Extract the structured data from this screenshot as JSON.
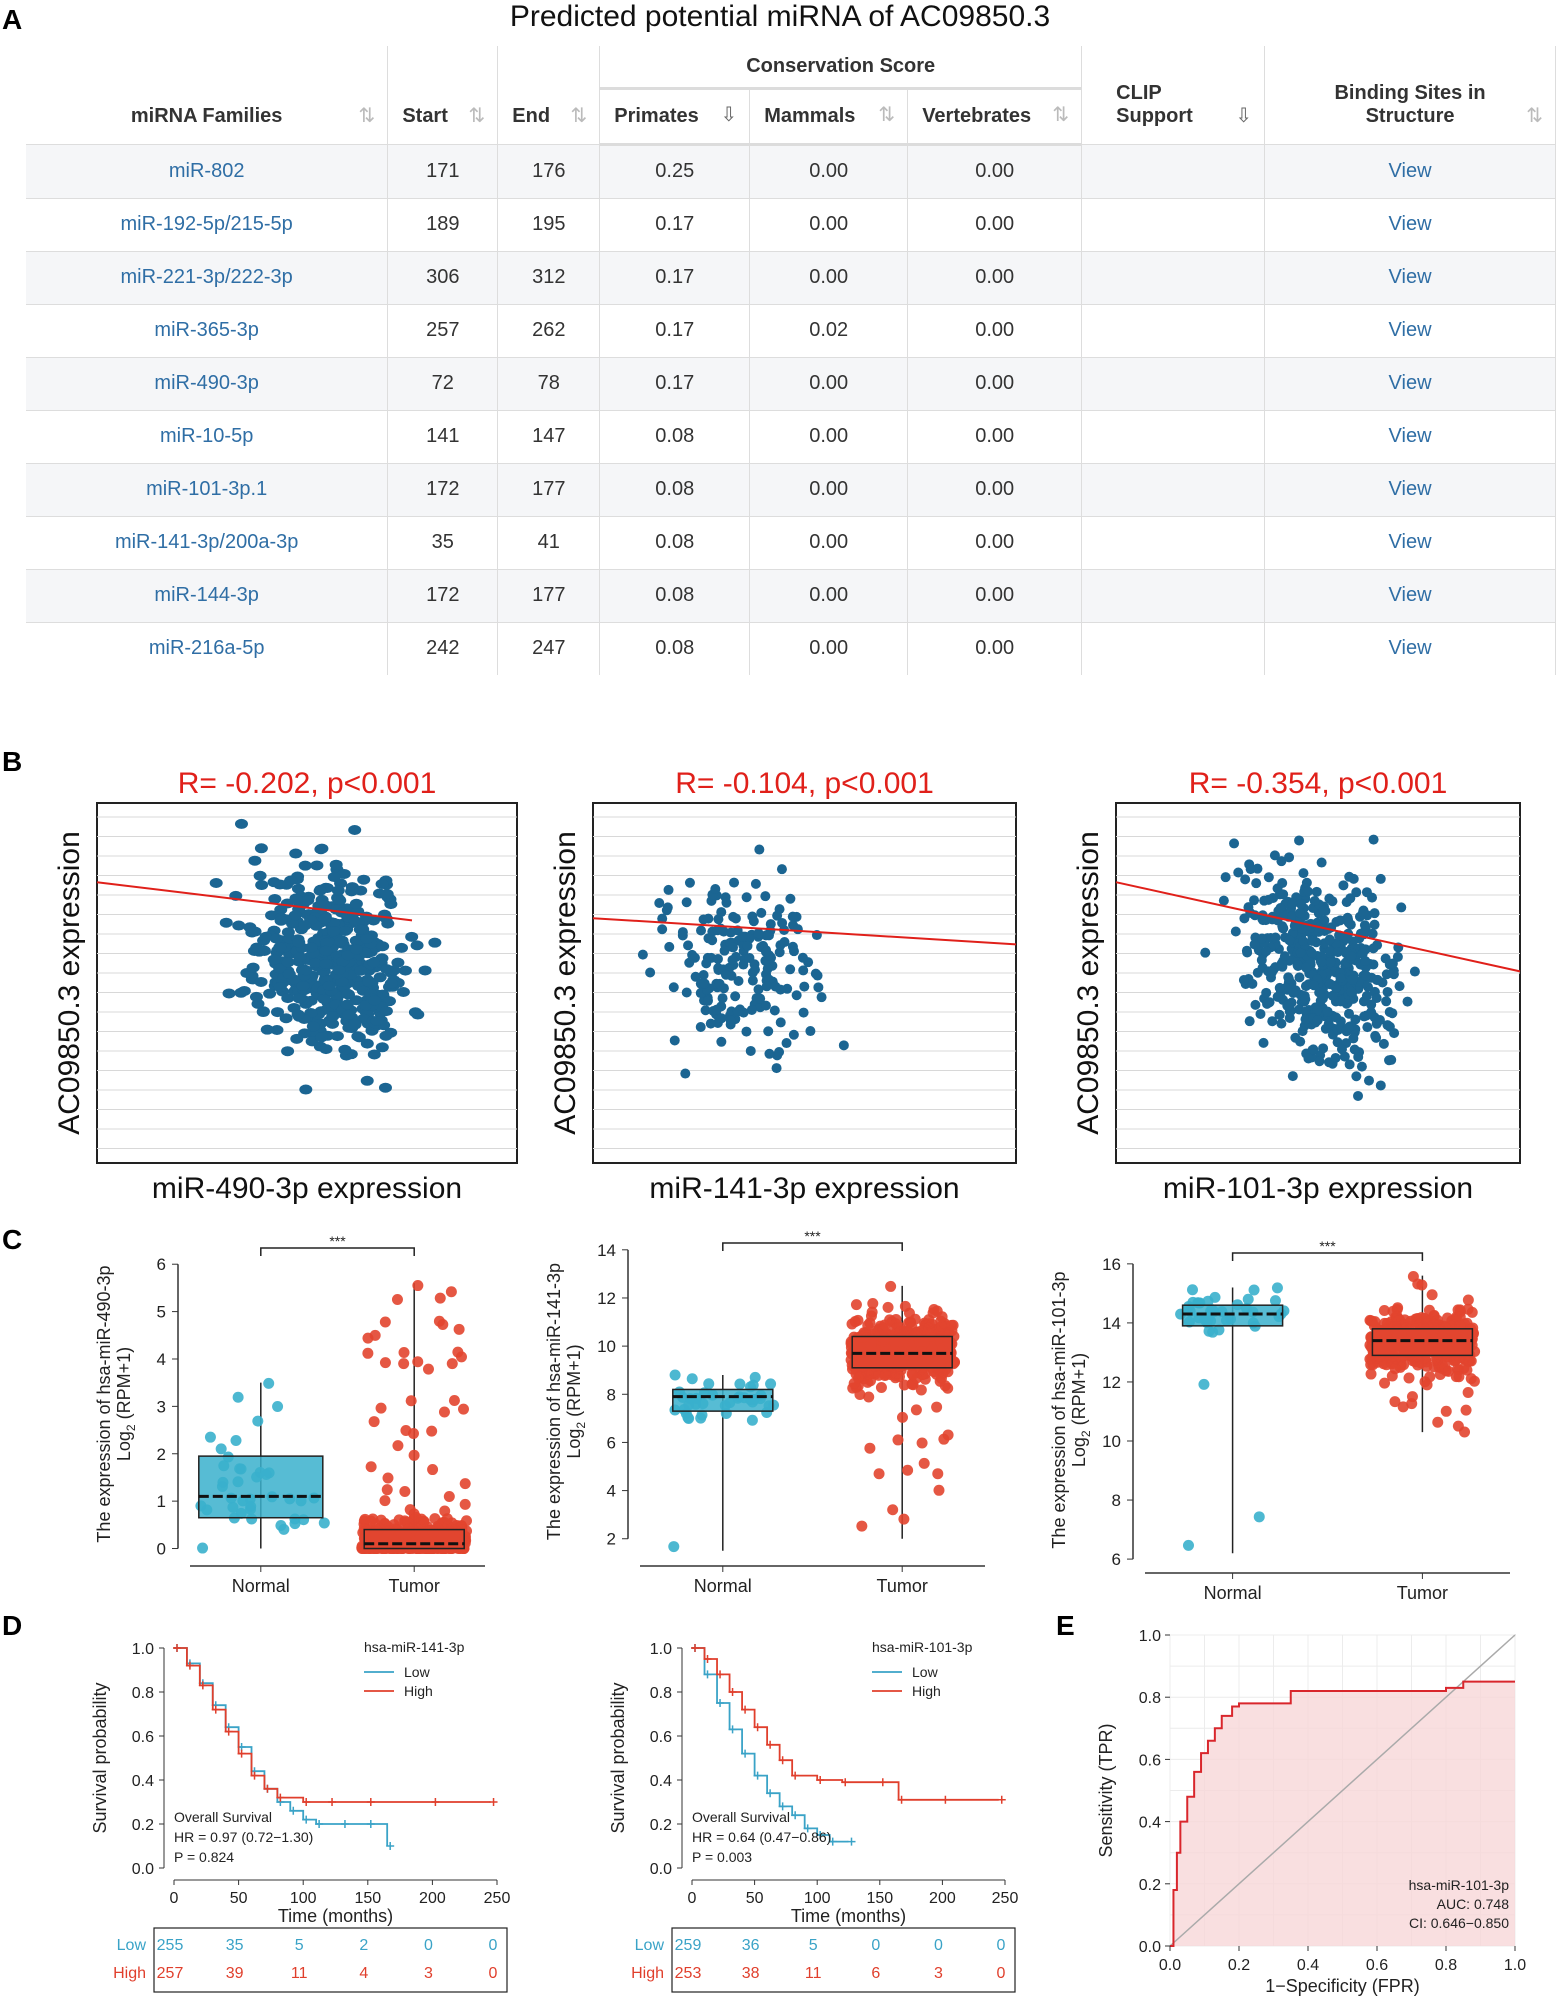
{
  "panelA": {
    "letter": "A",
    "title": "Predicted potential miRNA of AC09850.3",
    "headers": {
      "families": "miRNA Families",
      "start": "Start",
      "end": "End",
      "conservation": "Conservation Score",
      "primates": "Primates",
      "mammals": "Mammals",
      "vertebrates": "Vertebrates",
      "clip1": "CLIP",
      "clip2": "Support",
      "binding1": "Binding Sites in",
      "binding2": "Structure"
    },
    "sort_icon": "sort-icon",
    "rows": [
      {
        "family": "miR-802",
        "start": "171",
        "end": "176",
        "primates": "0.25",
        "mammals": "0.00",
        "vertebrates": "0.00",
        "clip": "",
        "view": "View"
      },
      {
        "family": "miR-192-5p/215-5p",
        "start": "189",
        "end": "195",
        "primates": "0.17",
        "mammals": "0.00",
        "vertebrates": "0.00",
        "clip": "",
        "view": "View"
      },
      {
        "family": "miR-221-3p/222-3p",
        "start": "306",
        "end": "312",
        "primates": "0.17",
        "mammals": "0.00",
        "vertebrates": "0.00",
        "clip": "",
        "view": "View"
      },
      {
        "family": "miR-365-3p",
        "start": "257",
        "end": "262",
        "primates": "0.17",
        "mammals": "0.02",
        "vertebrates": "0.00",
        "clip": "",
        "view": "View"
      },
      {
        "family": "miR-490-3p",
        "start": "72",
        "end": "78",
        "primates": "0.17",
        "mammals": "0.00",
        "vertebrates": "0.00",
        "clip": "",
        "view": "View"
      },
      {
        "family": "miR-10-5p",
        "start": "141",
        "end": "147",
        "primates": "0.08",
        "mammals": "0.00",
        "vertebrates": "0.00",
        "clip": "",
        "view": "View"
      },
      {
        "family": "miR-101-3p.1",
        "start": "172",
        "end": "177",
        "primates": "0.08",
        "mammals": "0.00",
        "vertebrates": "0.00",
        "clip": "",
        "view": "View"
      },
      {
        "family": "miR-141-3p/200a-3p",
        "start": "35",
        "end": "41",
        "primates": "0.08",
        "mammals": "0.00",
        "vertebrates": "0.00",
        "clip": "",
        "view": "View"
      },
      {
        "family": "miR-144-3p",
        "start": "172",
        "end": "177",
        "primates": "0.08",
        "mammals": "0.00",
        "vertebrates": "0.00",
        "clip": "",
        "view": "View"
      },
      {
        "family": "miR-216a-5p",
        "start": "242",
        "end": "247",
        "primates": "0.08",
        "mammals": "0.00",
        "vertebrates": "0.00",
        "clip": "",
        "view": "View"
      }
    ]
  },
  "letters": {
    "B": "B",
    "C": "C",
    "D": "D",
    "E": "E"
  },
  "colors": {
    "blue_point": "#1b6592",
    "red_line": "#e0201a",
    "cyan": "#3ab0cc",
    "tumor_red": "#e2452f",
    "link": "#2f6ea5"
  },
  "chart_data": [
    {
      "id": "B1",
      "type": "scatter",
      "title": "R= -0.202, p<0.001",
      "xlabel": "miR-490-3p expression",
      "ylabel": "AC09850.3 expression",
      "r": -0.202,
      "n_points": 480,
      "xcenter": 0.55,
      "note": "regression line descending"
    },
    {
      "id": "B2",
      "type": "scatter",
      "title": "R= -0.104, p<0.001",
      "xlabel": "miR-141-3p expression",
      "ylabel": "AC09850.3 expression",
      "r": -0.104,
      "n_points": 190,
      "xcenter": 0.35
    },
    {
      "id": "B3",
      "type": "scatter",
      "title": "R= -0.354, p<0.001",
      "xlabel": "miR-101-3p expression",
      "ylabel": "AC09850.3 expression",
      "r": -0.354,
      "n_points": 480,
      "xcenter": 0.5
    },
    {
      "id": "C1",
      "type": "box",
      "ylabel1": "The expression of hsa-miR-490-3p",
      "ylabel2": "Log",
      "ylabel_sub": "2",
      "ylabel3": " (RPM+1)",
      "categories": [
        "Normal",
        "Tumor"
      ],
      "yticks": [
        0,
        1,
        2,
        3,
        4,
        5,
        6
      ],
      "ylim": [
        -0.2,
        6.3
      ],
      "signif": "***",
      "boxes": [
        {
          "q1": 0.65,
          "median": 1.1,
          "q3": 1.95,
          "wlo": 0.0,
          "whi": 3.5
        },
        {
          "q1": 0.0,
          "median": 0.1,
          "q3": 0.4,
          "wlo": 0.0,
          "whi": 5.6
        }
      ]
    },
    {
      "id": "C2",
      "type": "box",
      "ylabel1": "The expression of hsa-miR-141-3p",
      "ylabel2": "Log",
      "ylabel_sub": "2",
      "ylabel3": " (RPM+1)",
      "categories": [
        "Normal",
        "Tumor"
      ],
      "yticks": [
        2,
        4,
        6,
        8,
        10,
        12,
        14
      ],
      "ylim": [
        1.2,
        14.2
      ],
      "signif": "***",
      "boxes": [
        {
          "q1": 7.3,
          "median": 7.9,
          "q3": 8.2,
          "wlo": 1.5,
          "whi": 8.8
        },
        {
          "q1": 9.1,
          "median": 9.7,
          "q3": 10.4,
          "wlo": 2.0,
          "whi": 12.5
        }
      ]
    },
    {
      "id": "C3",
      "type": "box",
      "ylabel1": "The expression of hsa-miR-101-3p",
      "ylabel2": "Log",
      "ylabel_sub": "2",
      "ylabel3": " (RPM+1)",
      "categories": [
        "Normal",
        "Tumor"
      ],
      "yticks": [
        6,
        8,
        10,
        12,
        14,
        16
      ],
      "ylim": [
        5.8,
        16.3
      ],
      "signif": "***",
      "boxes": [
        {
          "q1": 13.9,
          "median": 14.3,
          "q3": 14.6,
          "wlo": 6.2,
          "whi": 15.2
        },
        {
          "q1": 12.9,
          "median": 13.4,
          "q3": 13.8,
          "wlo": 10.3,
          "whi": 15.6
        }
      ]
    },
    {
      "id": "D1",
      "type": "line",
      "legend_title": "hsa-miR-141-3p",
      "legend": [
        "Low",
        "High"
      ],
      "xlabel": "Time (months)",
      "ylabel": "Survival probability",
      "xticks": [
        0,
        50,
        100,
        150,
        200,
        250
      ],
      "yticks": [
        "0.0",
        "0.2",
        "0.4",
        "0.6",
        "0.8",
        "1.0"
      ],
      "annot": [
        "Overall Survival",
        "HR = 0.97 (0.72−1.30)",
        "P = 0.824"
      ],
      "risk": {
        "Low": [
          "255",
          "35",
          "5",
          "2",
          "0",
          "0"
        ],
        "High": [
          "257",
          "39",
          "11",
          "4",
          "3",
          "0"
        ]
      },
      "series": [
        {
          "name": "Low",
          "x": [
            0,
            10,
            20,
            30,
            40,
            50,
            60,
            70,
            80,
            90,
            100,
            110,
            130,
            150,
            165
          ],
          "y": [
            1.0,
            0.93,
            0.84,
            0.74,
            0.64,
            0.55,
            0.44,
            0.36,
            0.3,
            0.26,
            0.22,
            0.2,
            0.2,
            0.2,
            0.1
          ]
        },
        {
          "name": "High",
          "x": [
            0,
            10,
            20,
            30,
            40,
            50,
            60,
            70,
            80,
            100,
            120,
            150,
            200,
            245
          ],
          "y": [
            1.0,
            0.92,
            0.83,
            0.72,
            0.62,
            0.52,
            0.42,
            0.36,
            0.32,
            0.3,
            0.3,
            0.3,
            0.3,
            0.3
          ]
        }
      ]
    },
    {
      "id": "D2",
      "type": "line",
      "legend_title": "hsa-miR-101-3p",
      "legend": [
        "Low",
        "High"
      ],
      "xlabel": "Time (months)",
      "ylabel": "Survival probability",
      "xticks": [
        0,
        50,
        100,
        150,
        200,
        250
      ],
      "yticks": [
        "0.0",
        "0.2",
        "0.4",
        "0.6",
        "0.8",
        "1.0"
      ],
      "annot": [
        "Overall Survival",
        "HR = 0.64 (0.47−0.86)",
        "P = 0.003"
      ],
      "risk": {
        "Low": [
          "259",
          "36",
          "5",
          "0",
          "0",
          "0"
        ],
        "High": [
          "253",
          "38",
          "11",
          "6",
          "3",
          "0"
        ]
      },
      "series": [
        {
          "name": "Low",
          "x": [
            0,
            10,
            20,
            30,
            40,
            50,
            60,
            70,
            80,
            90,
            100,
            110,
            125
          ],
          "y": [
            1.0,
            0.88,
            0.75,
            0.63,
            0.52,
            0.42,
            0.34,
            0.28,
            0.24,
            0.18,
            0.15,
            0.12,
            0.12
          ]
        },
        {
          "name": "High",
          "x": [
            0,
            10,
            20,
            30,
            40,
            50,
            60,
            70,
            80,
            100,
            120,
            150,
            165,
            200,
            245
          ],
          "y": [
            1.0,
            0.95,
            0.88,
            0.8,
            0.72,
            0.64,
            0.56,
            0.49,
            0.42,
            0.4,
            0.39,
            0.39,
            0.31,
            0.31,
            0.31
          ]
        }
      ]
    },
    {
      "id": "E",
      "type": "line",
      "xlabel": "1−Specificity (FPR)",
      "ylabel": "Sensitivity (TPR)",
      "xticks": [
        "0.0",
        "0.2",
        "0.4",
        "0.6",
        "0.8",
        "1.0"
      ],
      "yticks": [
        "0.0",
        "0.2",
        "0.4",
        "0.6",
        "0.8",
        "1.0"
      ],
      "legend": [
        "hsa-miR-101-3p",
        "AUC: 0.748",
        "CI: 0.646−0.850"
      ],
      "series": [
        {
          "name": "ROC",
          "x": [
            0,
            0.01,
            0.02,
            0.03,
            0.05,
            0.07,
            0.09,
            0.11,
            0.13,
            0.15,
            0.18,
            0.2,
            0.25,
            0.35,
            0.5,
            0.8,
            0.85,
            1.0
          ],
          "y": [
            0,
            0.18,
            0.3,
            0.4,
            0.48,
            0.56,
            0.62,
            0.66,
            0.7,
            0.74,
            0.77,
            0.78,
            0.78,
            0.82,
            0.82,
            0.83,
            0.85,
            0.85
          ]
        }
      ]
    }
  ]
}
